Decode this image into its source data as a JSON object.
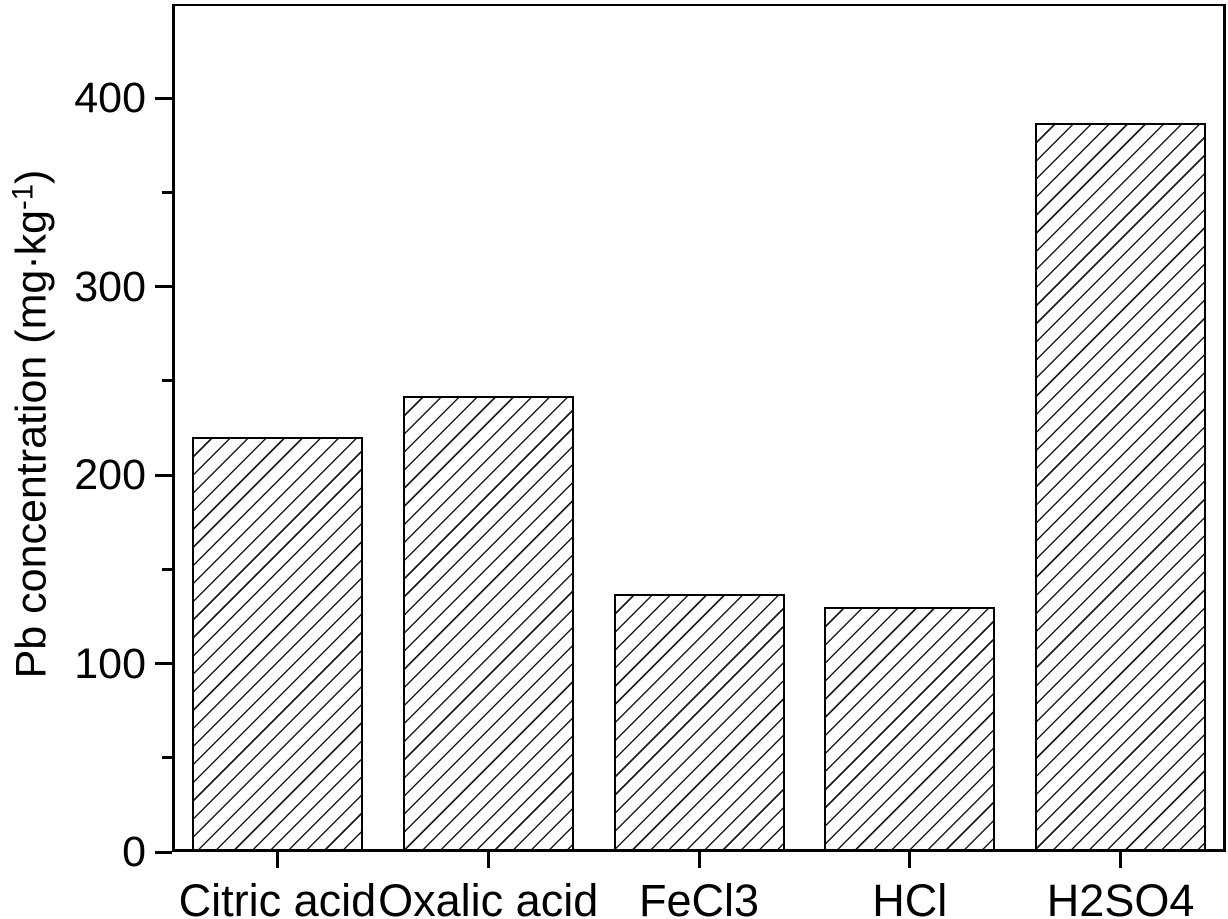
{
  "chart_data": {
    "type": "bar",
    "title": "",
    "categories": [
      "Citric acid",
      "Oxalic acid",
      "FeCl3",
      "HCl",
      "H2SO4"
    ],
    "values": [
      220,
      242,
      137,
      130,
      387
    ],
    "xlabel": "",
    "ylabel": "Pb concentration (mg·kg⁻¹)",
    "ylabel_parts": {
      "pre": "Pb concentration (mg·kg",
      "sup": "-1",
      "post": ")"
    },
    "ylim": [
      0,
      450
    ],
    "y_major_ticks": [
      0,
      100,
      200,
      300,
      400
    ],
    "y_tick_labels": [
      "0",
      "100",
      "200",
      "300",
      "400"
    ],
    "y_minor_ticks": [
      50,
      150,
      250,
      350
    ],
    "grid": false,
    "legend": "none",
    "bar_style": {
      "fill": "#ffffff",
      "hatch": "diagonal-forward-slash",
      "edge_color": "#000000"
    }
  },
  "colors": {
    "background": "#ffffff",
    "axis": "#000000",
    "text": "#000000"
  }
}
